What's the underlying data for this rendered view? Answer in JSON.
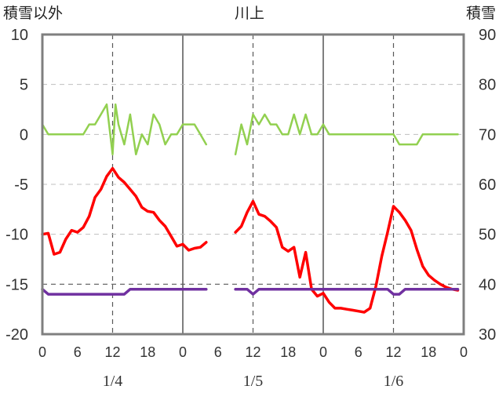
{
  "chart_data": {
    "type": "line",
    "title": "川上",
    "left_axis_label": "積雪以外",
    "right_axis_label": "積雪",
    "left_ylim": [
      -20,
      10
    ],
    "left_yticks": [
      "10",
      "5",
      "0",
      "-5",
      "-10",
      "-15",
      "-20"
    ],
    "right_ylim": [
      30,
      90
    ],
    "right_yticks": [
      "90",
      "80",
      "70",
      "60",
      "50",
      "40",
      "30"
    ],
    "xlim": [
      0,
      72
    ],
    "x_tick_labels": [
      "0",
      "6",
      "12",
      "18",
      "0",
      "6",
      "12",
      "18",
      "0",
      "6",
      "12",
      "18",
      "0"
    ],
    "date_labels": [
      "1/4",
      "1/5",
      "1/6"
    ],
    "grid": "dashed vertical lines at 12h, solid vertical lines at 0h, dashed horizontal line at -15",
    "series": [
      {
        "axis": "left",
        "color": "#92d050",
        "segments": [
          [
            [
              0,
              1
            ],
            [
              1,
              0
            ],
            [
              2,
              0
            ],
            [
              3,
              0
            ],
            [
              4,
              0
            ],
            [
              5,
              0
            ],
            [
              6,
              0
            ],
            [
              7,
              0
            ],
            [
              8,
              1
            ],
            [
              9,
              1
            ],
            [
              10,
              2
            ],
            [
              11,
              3
            ],
            [
              12,
              -2
            ],
            [
              12.5,
              3
            ],
            [
              13,
              1
            ],
            [
              14,
              -1
            ],
            [
              15,
              2
            ],
            [
              16,
              -2
            ],
            [
              17,
              0
            ],
            [
              18,
              -1
            ],
            [
              19,
              2
            ],
            [
              20,
              1
            ],
            [
              21,
              -1
            ],
            [
              22,
              0
            ],
            [
              23,
              0
            ],
            [
              24,
              1
            ],
            [
              25,
              1
            ],
            [
              26,
              1
            ],
            [
              27,
              0
            ],
            [
              28,
              -1
            ]
          ],
          [
            [
              33,
              -2
            ],
            [
              34,
              1
            ],
            [
              35,
              -1
            ],
            [
              36,
              2
            ],
            [
              37,
              1
            ],
            [
              38,
              2
            ],
            [
              39,
              1
            ],
            [
              40,
              1
            ],
            [
              41,
              0
            ],
            [
              42,
              0
            ],
            [
              43,
              2
            ],
            [
              44,
              0
            ],
            [
              45,
              2
            ],
            [
              46,
              0
            ],
            [
              47,
              0
            ],
            [
              48,
              1
            ],
            [
              49,
              0
            ],
            [
              50,
              0
            ],
            [
              60,
              0
            ],
            [
              61,
              -1
            ],
            [
              62,
              -1
            ],
            [
              63,
              -1
            ],
            [
              64,
              -1
            ],
            [
              65,
              0
            ],
            [
              66,
              0
            ],
            [
              71,
              0
            ]
          ]
        ]
      },
      {
        "axis": "left",
        "color": "#ff0000",
        "segments": [
          [
            [
              0,
              -10
            ],
            [
              1,
              -9.9
            ],
            [
              2,
              -12
            ],
            [
              3,
              -11.8
            ],
            [
              4,
              -10.5
            ],
            [
              5,
              -9.6
            ],
            [
              6,
              -9.8
            ],
            [
              7,
              -9.3
            ],
            [
              8,
              -8.2
            ],
            [
              9,
              -6.3
            ],
            [
              10,
              -5.5
            ],
            [
              11,
              -4.2
            ],
            [
              12,
              -3.4
            ],
            [
              13,
              -4.3
            ],
            [
              14,
              -4.8
            ],
            [
              15,
              -5.5
            ],
            [
              16,
              -6.2
            ],
            [
              17,
              -7.3
            ],
            [
              18,
              -7.7
            ],
            [
              19,
              -7.8
            ],
            [
              20,
              -8.6
            ],
            [
              21,
              -9.2
            ],
            [
              22,
              -10.2
            ],
            [
              23,
              -11.2
            ],
            [
              24,
              -11
            ],
            [
              25,
              -11.6
            ],
            [
              26,
              -11.4
            ],
            [
              27,
              -11.3
            ],
            [
              28,
              -10.8
            ]
          ],
          [
            [
              33,
              -9.8
            ],
            [
              34,
              -9.2
            ],
            [
              35,
              -7.8
            ],
            [
              36,
              -6.7
            ],
            [
              37,
              -8
            ],
            [
              38,
              -8.2
            ],
            [
              39,
              -8.7
            ],
            [
              40,
              -9.3
            ],
            [
              41,
              -11.3
            ],
            [
              42,
              -11.7
            ],
            [
              43,
              -11.3
            ],
            [
              44,
              -14.3
            ],
            [
              45,
              -11.8
            ],
            [
              46,
              -15.5
            ],
            [
              47,
              -16.2
            ],
            [
              48,
              -15.9
            ],
            [
              49,
              -16.8
            ],
            [
              50,
              -17.4
            ],
            [
              51,
              -17.4
            ],
            [
              52,
              -17.5
            ],
            [
              53,
              -17.6
            ],
            [
              54,
              -17.7
            ],
            [
              55,
              -17.8
            ],
            [
              56,
              -17.4
            ],
            [
              57,
              -15.2
            ],
            [
              58,
              -12.2
            ],
            [
              59,
              -9.8
            ],
            [
              60,
              -7.2
            ],
            [
              61,
              -7.8
            ],
            [
              62,
              -8.6
            ],
            [
              63,
              -9.6
            ],
            [
              64,
              -11.5
            ],
            [
              65,
              -13.2
            ],
            [
              66,
              -14.1
            ],
            [
              67,
              -14.6
            ],
            [
              68,
              -15.0
            ],
            [
              69,
              -15.3
            ],
            [
              70,
              -15.5
            ],
            [
              71,
              -15.6
            ]
          ]
        ]
      },
      {
        "axis": "right",
        "color": "#7030a0",
        "segments": [
          [
            [
              0,
              39
            ],
            [
              1,
              38
            ],
            [
              2,
              38
            ],
            [
              3,
              38
            ],
            [
              4,
              38
            ],
            [
              5,
              38
            ],
            [
              6,
              38
            ],
            [
              7,
              38
            ],
            [
              8,
              38
            ],
            [
              9,
              38
            ],
            [
              10,
              38
            ],
            [
              11,
              38
            ],
            [
              12,
              38
            ],
            [
              13,
              38
            ],
            [
              14,
              38
            ],
            [
              15,
              39
            ],
            [
              16,
              39
            ],
            [
              17,
              39
            ],
            [
              18,
              39
            ],
            [
              19,
              39
            ],
            [
              20,
              39
            ],
            [
              21,
              39
            ],
            [
              22,
              39
            ],
            [
              23,
              39
            ],
            [
              24,
              39
            ],
            [
              25,
              39
            ],
            [
              26,
              39
            ],
            [
              27,
              39
            ],
            [
              28,
              39
            ]
          ],
          [
            [
              33,
              39
            ],
            [
              34,
              39
            ],
            [
              35,
              39
            ],
            [
              36,
              38
            ],
            [
              37,
              39
            ],
            [
              38,
              39
            ],
            [
              39,
              39
            ],
            [
              40,
              39
            ],
            [
              41,
              39
            ],
            [
              42,
              39
            ],
            [
              43,
              39
            ],
            [
              44,
              39
            ],
            [
              45,
              39
            ],
            [
              46,
              39
            ],
            [
              47,
              39
            ],
            [
              48,
              39
            ],
            [
              49,
              39
            ],
            [
              50,
              39
            ],
            [
              51,
              39
            ],
            [
              52,
              39
            ],
            [
              53,
              39
            ],
            [
              54,
              39
            ],
            [
              55,
              39
            ],
            [
              56,
              39
            ],
            [
              57,
              39
            ],
            [
              58,
              39
            ],
            [
              59,
              39
            ],
            [
              60,
              38
            ],
            [
              61,
              38
            ],
            [
              62,
              39
            ],
            [
              63,
              39
            ],
            [
              64,
              39
            ],
            [
              65,
              39
            ],
            [
              66,
              39
            ],
            [
              67,
              39
            ],
            [
              68,
              39
            ],
            [
              69,
              39
            ],
            [
              70,
              39
            ],
            [
              71,
              39
            ]
          ]
        ]
      }
    ]
  }
}
